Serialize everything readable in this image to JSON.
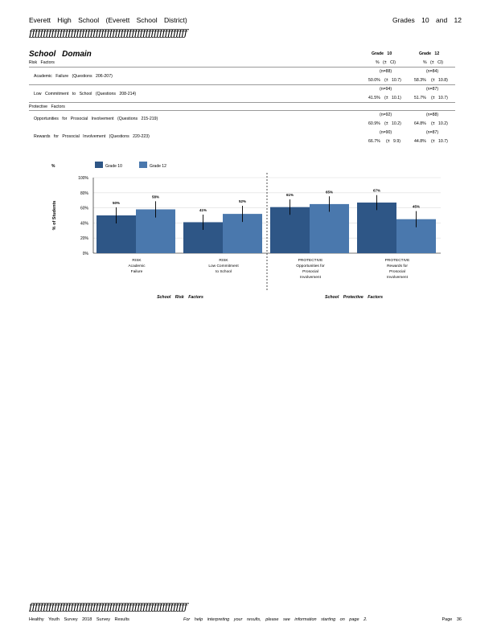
{
  "header": {
    "school": "Everett High School (Everett School District)",
    "grades": "Grades 10 and 12",
    "rule": "ƒƒƒƒƒƒƒƒƒƒƒƒƒƒƒƒƒƒƒƒƒƒƒƒƒƒƒƒƒƒƒƒƒƒƒƒƒƒƒƒƒƒƒƒƒƒƒƒƒƒƒƒƒƒƒƒƒ"
  },
  "table": {
    "domain_title": "School Domain",
    "col_grade10": "Grade 10",
    "col_grade12": "Grade 12",
    "col_ci": "% (± CI)",
    "risk_label": "Risk Factors",
    "protective_label": "Protective Factors",
    "rows": [
      {
        "label": "Academic Failure (Questions 206-207)",
        "n10": "(n=88)",
        "n12": "(n=84)",
        "v10": "50.0%",
        "ci10": "(± 10.7)",
        "v12": "58.3%",
        "ci12": "(± 10.8)"
      },
      {
        "label": "Low Commitment to School (Questions 208-214)",
        "n10": "(n=94)",
        "n12": "(n=87)",
        "v10": "41.5%",
        "ci10": "(± 10.1)",
        "v12": "51.7%",
        "ci12": "(± 10.7)"
      },
      {
        "label": "Opportunities for Prosocial Involvement (Questions 215-219)",
        "n10": "(n=92)",
        "n12": "(n=88)",
        "v10": "60.9%",
        "ci10": "(± 10.2)",
        "v12": "64.8%",
        "ci12": "(± 10.2)"
      },
      {
        "label": "Rewards for Prosocial Involvement (Questions 220-223)",
        "n10": "(n=90)",
        "n12": "(n=87)",
        "v10": "66.7%",
        "ci10": "(± 9.9)",
        "v12": "44.8%",
        "ci12": "(± 10.7)"
      }
    ]
  },
  "chart_data": {
    "type": "bar",
    "ylabel": "% of Students",
    "ylim": [
      0,
      100
    ],
    "yticks": [
      "0%",
      "20%",
      "40%",
      "60%",
      "80%",
      "100%"
    ],
    "grid": true,
    "legend_position": "top-left",
    "categories": [
      [
        "RISK",
        "Academic",
        "Failure"
      ],
      [
        "RISK",
        "Low Commitment",
        "to School"
      ],
      [
        "PROTECTIVE",
        "Opportunities for",
        "Prosocial",
        "Involvement"
      ],
      [
        "PROTECTIVE",
        "Rewards for",
        "Prosocial",
        "Involvement"
      ]
    ],
    "series": [
      {
        "name": "Grade 10",
        "color": "#2e5686",
        "values": [
          50,
          41,
          61,
          67
        ],
        "ci": [
          10.7,
          10.1,
          10.2,
          9.9
        ],
        "labels": [
          "50%",
          "41%",
          "61%",
          "67%"
        ]
      },
      {
        "name": "Grade 12",
        "color": "#4a78ad",
        "values": [
          58,
          52,
          65,
          45
        ],
        "ci": [
          10.8,
          10.7,
          10.2,
          10.7
        ],
        "labels": [
          "58%",
          "52%",
          "65%",
          "45%"
        ]
      }
    ],
    "group_labels": [
      "School Risk Factors",
      "School Protective Factors"
    ]
  },
  "footer": {
    "rule": "ƒƒƒƒƒƒƒƒƒƒƒƒƒƒƒƒƒƒƒƒƒƒƒƒƒƒƒƒƒƒƒƒƒƒƒƒƒƒƒƒƒƒƒƒƒƒƒƒƒƒƒƒƒƒƒƒƒ",
    "left": "Healthy Youth Survey 2018 Survey Results",
    "help": "For help interpreting your results, please see information starting on page 2.",
    "page": "Page 36"
  }
}
